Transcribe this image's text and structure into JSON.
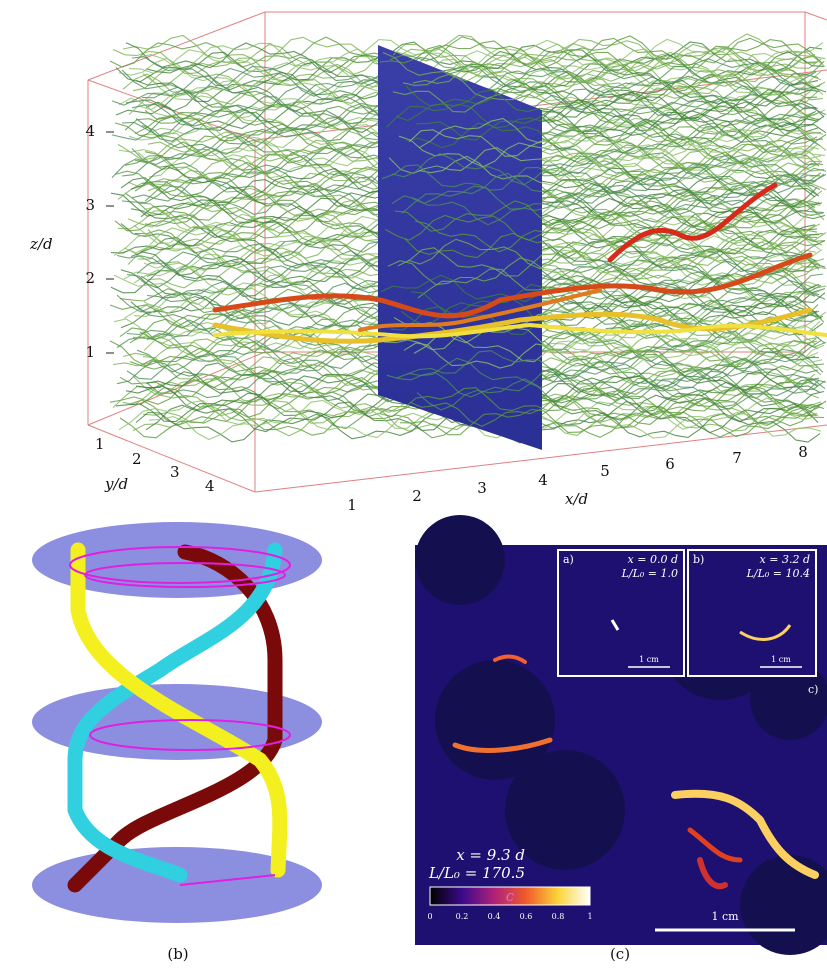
{
  "panel_a": {
    "z_label": "z/d",
    "y_label": "y/d",
    "x_label": "x/d",
    "z_ticks": [
      "1",
      "2",
      "3",
      "4"
    ],
    "y_ticks": [
      "1",
      "2",
      "3",
      "4"
    ],
    "x_ticks": [
      "1",
      "2",
      "3",
      "4",
      "5",
      "6",
      "7",
      "8"
    ]
  },
  "panel_b": {
    "caption": "(b)"
  },
  "panel_c": {
    "caption": "(c)",
    "insets": [
      {
        "tag": "a)",
        "position": "x = 0.0 d",
        "stretch": "L/L₀ = 1.0",
        "scale": "1 cm"
      },
      {
        "tag": "b)",
        "position": "x = 3.2 d",
        "stretch": "L/L₀ = 10.4",
        "scale": "1 cm"
      }
    ],
    "main_tag": "c)",
    "position": "x = 9.3 d",
    "stretch": "L/L₀ = 170.5",
    "colorbar_label": "c",
    "colorbar_ticks": [
      "0",
      "0.2",
      "0.4",
      "0.6",
      "0.8",
      "1"
    ],
    "scale": "1 cm"
  }
}
